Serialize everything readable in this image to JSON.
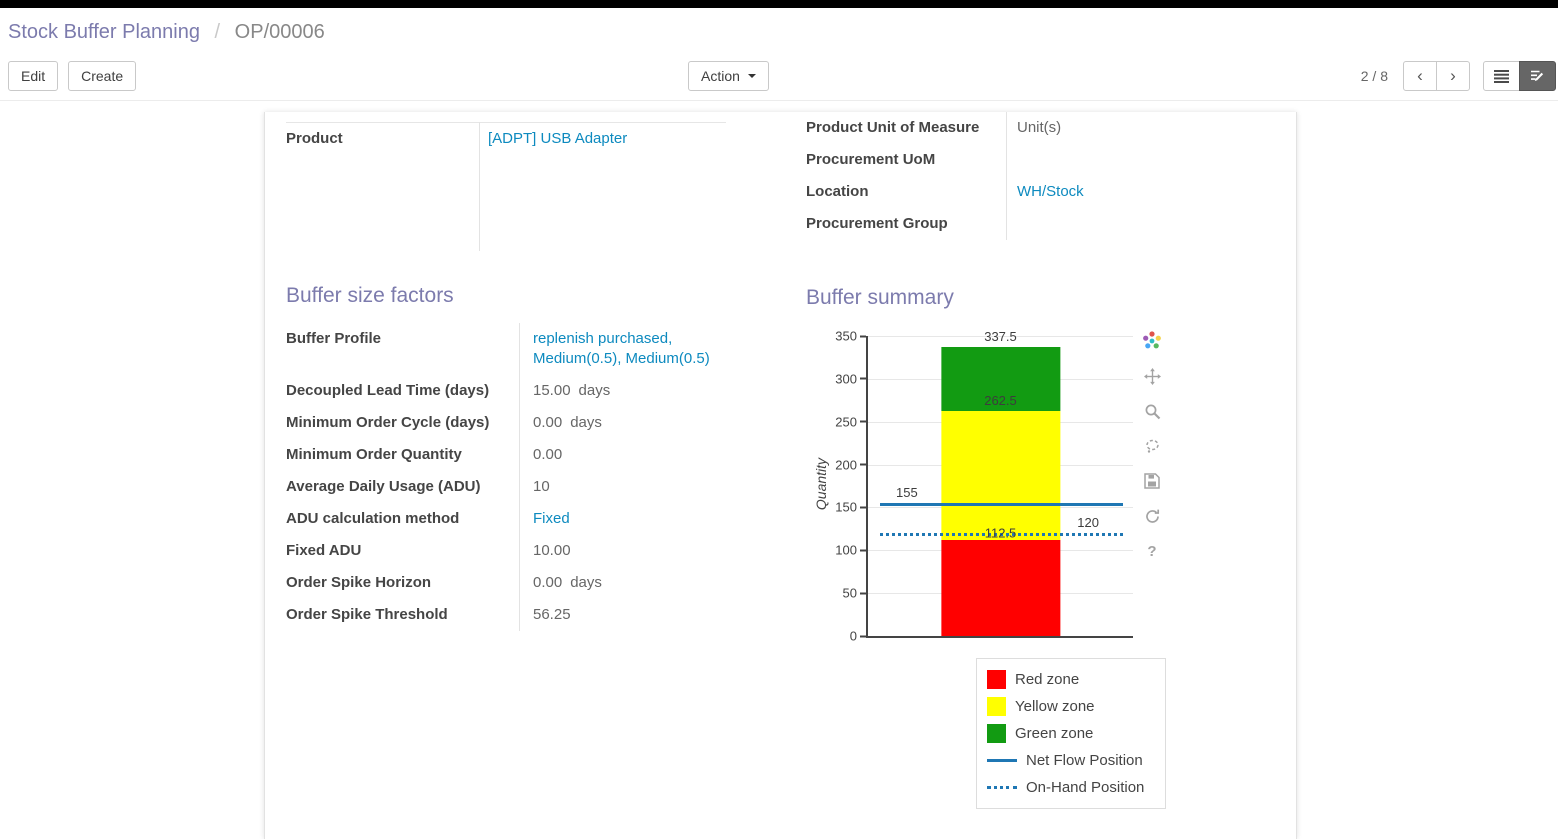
{
  "breadcrumb": {
    "parent": "Stock Buffer Planning",
    "separator": "/",
    "current": "OP/00006"
  },
  "toolbar": {
    "edit": "Edit",
    "create": "Create",
    "action": "Action",
    "pager": "2 / 8",
    "prev_icon": "‹",
    "next_icon": "›"
  },
  "form": {
    "left_fields": [
      {
        "label": "Product",
        "value": "[ADPT] USB Adapter",
        "link": true
      }
    ],
    "right_fields": [
      {
        "label": "Product Unit of Measure",
        "value": "Unit(s)",
        "link": false
      },
      {
        "label": "Procurement UoM",
        "value": "",
        "link": false
      },
      {
        "label": "Location",
        "value": "WH/Stock",
        "link": true
      },
      {
        "label": "Procurement Group",
        "value": "",
        "link": false
      }
    ],
    "buffer_factors": {
      "title": "Buffer size factors",
      "fields": [
        {
          "label": "Buffer Profile",
          "value": "replenish purchased, Medium(0.5), Medium(0.5)",
          "link": true
        },
        {
          "label": "Decoupled Lead Time (days)",
          "value": "15.00",
          "suffix": "days"
        },
        {
          "label": "Minimum Order Cycle (days)",
          "value": "0.00",
          "suffix": "days"
        },
        {
          "label": "Minimum Order Quantity",
          "value": "0.00"
        },
        {
          "label": "Average Daily Usage (ADU)",
          "value": "10"
        },
        {
          "label": "ADU calculation method",
          "value": "Fixed",
          "link": true
        },
        {
          "label": "Fixed ADU",
          "value": "10.00"
        },
        {
          "label": "Order Spike Horizon",
          "value": "0.00",
          "suffix": "days"
        },
        {
          "label": "Order Spike Threshold",
          "value": "56.25"
        }
      ]
    },
    "buffer_summary": {
      "title": "Buffer summary"
    }
  },
  "chart_toolbar": {
    "icons": [
      "plotly-logo",
      "pan",
      "zoom",
      "lasso-select",
      "download",
      "reset-axes",
      "help"
    ]
  },
  "chart_data": {
    "type": "bar",
    "title": "Buffer summary",
    "ylabel": "Quantity",
    "ylim": [
      0,
      350
    ],
    "ytick_step": 50,
    "zones": [
      {
        "name": "Red zone",
        "from": 0,
        "to": 112.5,
        "color": "#ff0000"
      },
      {
        "name": "Yellow zone",
        "from": 112.5,
        "to": 262.5,
        "color": "#ffff00"
      },
      {
        "name": "Green zone",
        "from": 262.5,
        "to": 337.5,
        "color": "#129b12"
      }
    ],
    "lines": [
      {
        "name": "Net Flow Position",
        "value": 155,
        "style": "solid",
        "color": "#1f77b4"
      },
      {
        "name": "On-Hand Position",
        "value": 120,
        "style": "dotted",
        "color": "#1f77b4"
      }
    ],
    "annotations": [
      {
        "text": "337.5",
        "y": 337.5,
        "x": "bar-center",
        "valign": "above"
      },
      {
        "text": "262.5",
        "y": 262.5,
        "x": "bar-center",
        "valign": "above"
      },
      {
        "text": "155",
        "y": 155,
        "x": "left",
        "valign": "above"
      },
      {
        "text": "112.5",
        "y": 120,
        "x": "bar-center",
        "valign": "middle"
      },
      {
        "text": "120",
        "y": 120,
        "x": "right",
        "valign": "above"
      }
    ],
    "legend_position": "below-right",
    "grid": true
  }
}
